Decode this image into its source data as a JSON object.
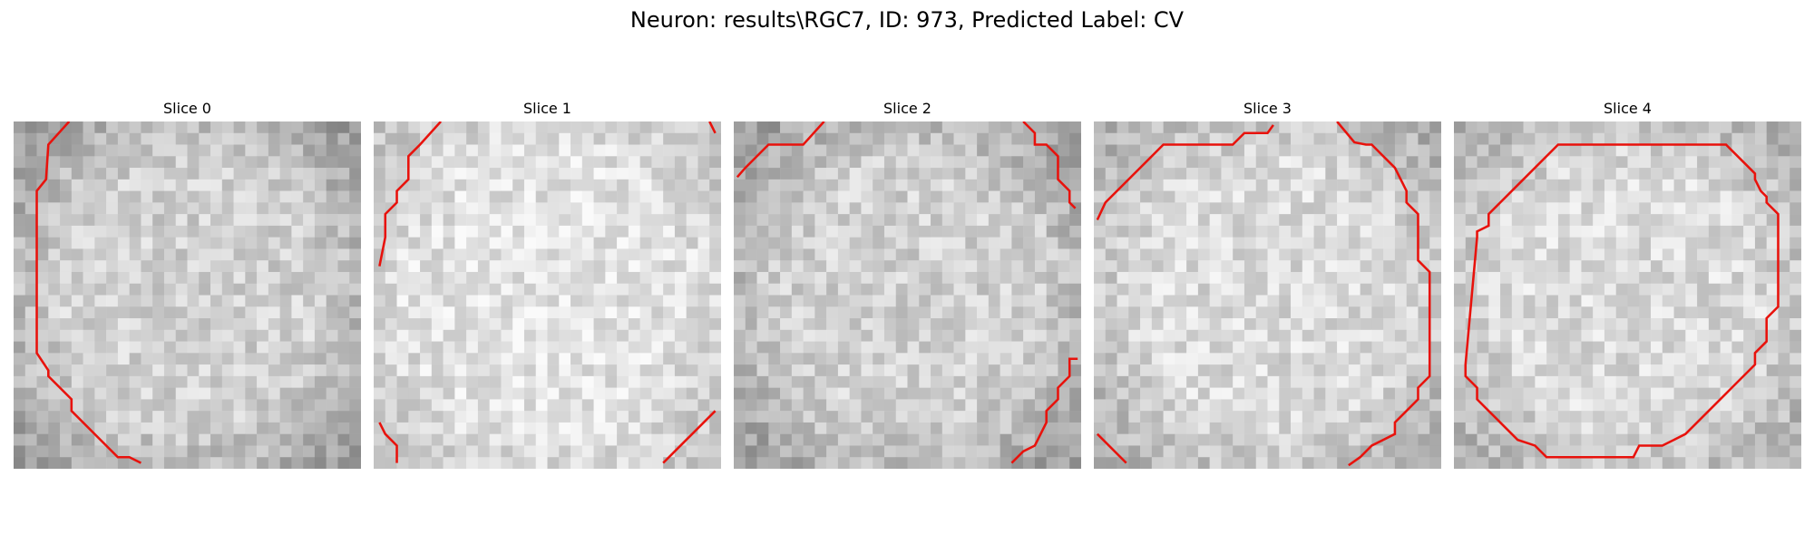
{
  "figure": {
    "title": "Neuron: results\\RGC7, ID: 973, Predicted Label: CV"
  },
  "colors": {
    "contour": "#e8120c"
  },
  "slices": [
    {
      "title": "Slice 0",
      "seed": 11,
      "contrast": "high"
    },
    {
      "title": "Slice 1",
      "seed": 23,
      "contrast": "low"
    },
    {
      "title": "Slice 2",
      "seed": 37,
      "contrast": "high"
    },
    {
      "title": "Slice 3",
      "seed": 41,
      "contrast": "medium"
    },
    {
      "title": "Slice 4",
      "seed": 53,
      "contrast": "medium"
    }
  ]
}
